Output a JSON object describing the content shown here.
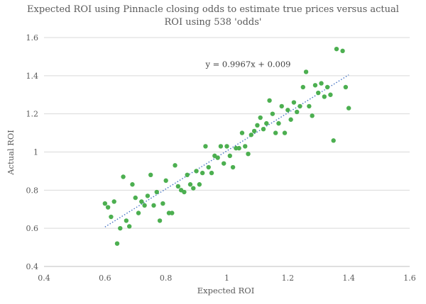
{
  "chart_data": {
    "type": "scatter",
    "title_lines": [
      "Expected ROI using Pinnacle closing odds to estimate true prices versus actual",
      "ROI using 538 'odds'"
    ],
    "xlabel": "Expected ROI",
    "ylabel": "Actual ROI",
    "xlim": [
      0.4,
      1.6
    ],
    "ylim": [
      0.4,
      1.6
    ],
    "x_ticks": [
      0.4,
      0.6,
      0.8,
      1.0,
      1.2,
      1.4,
      1.6
    ],
    "x_tick_labels": [
      "0.4",
      "0.6",
      "0.8",
      "1",
      "1.2",
      "1.4",
      "1.6"
    ],
    "y_ticks": [
      0.4,
      0.6,
      0.8,
      1.0,
      1.2,
      1.4,
      1.6
    ],
    "y_tick_labels": [
      "0.4",
      "0.6",
      "0.8",
      "1",
      "1.2",
      "1.4",
      "1.6"
    ],
    "grid": "horizontal",
    "legend": "none",
    "point_color": "#4caf50",
    "trend_color": "#4472c4",
    "grid_color": "#d9d9d9",
    "trendline": {
      "equation_label": "y = 0.9967x + 0.009",
      "slope": 0.9967,
      "intercept": 0.009,
      "x_range": [
        0.6,
        1.4
      ],
      "label_anchor": [
        0.93,
        1.46
      ]
    },
    "points": [
      [
        0.6,
        0.73
      ],
      [
        0.61,
        0.71
      ],
      [
        0.62,
        0.66
      ],
      [
        0.63,
        0.74
      ],
      [
        0.64,
        0.52
      ],
      [
        0.65,
        0.6
      ],
      [
        0.66,
        0.87
      ],
      [
        0.67,
        0.64
      ],
      [
        0.68,
        0.61
      ],
      [
        0.69,
        0.83
      ],
      [
        0.7,
        0.76
      ],
      [
        0.71,
        0.68
      ],
      [
        0.72,
        0.74
      ],
      [
        0.73,
        0.72
      ],
      [
        0.74,
        0.77
      ],
      [
        0.75,
        0.88
      ],
      [
        0.76,
        0.72
      ],
      [
        0.77,
        0.79
      ],
      [
        0.78,
        0.64
      ],
      [
        0.79,
        0.73
      ],
      [
        0.8,
        0.85
      ],
      [
        0.81,
        0.68
      ],
      [
        0.82,
        0.68
      ],
      [
        0.83,
        0.93
      ],
      [
        0.84,
        0.82
      ],
      [
        0.85,
        0.8
      ],
      [
        0.86,
        0.79
      ],
      [
        0.87,
        0.88
      ],
      [
        0.88,
        0.83
      ],
      [
        0.89,
        0.81
      ],
      [
        0.9,
        0.9
      ],
      [
        0.91,
        0.83
      ],
      [
        0.92,
        0.89
      ],
      [
        0.93,
        1.03
      ],
      [
        0.94,
        0.92
      ],
      [
        0.95,
        0.89
      ],
      [
        0.96,
        0.98
      ],
      [
        0.97,
        0.97
      ],
      [
        0.98,
        1.03
      ],
      [
        0.99,
        0.94
      ],
      [
        1.0,
        1.03
      ],
      [
        1.01,
        0.98
      ],
      [
        1.02,
        0.92
      ],
      [
        1.03,
        1.02
      ],
      [
        1.04,
        1.02
      ],
      [
        1.05,
        1.1
      ],
      [
        1.06,
        1.03
      ],
      [
        1.07,
        0.99
      ],
      [
        1.08,
        1.09
      ],
      [
        1.09,
        1.11
      ],
      [
        1.1,
        1.14
      ],
      [
        1.11,
        1.18
      ],
      [
        1.12,
        1.12
      ],
      [
        1.13,
        1.15
      ],
      [
        1.14,
        1.27
      ],
      [
        1.15,
        1.2
      ],
      [
        1.16,
        1.1
      ],
      [
        1.17,
        1.15
      ],
      [
        1.18,
        1.24
      ],
      [
        1.19,
        1.1
      ],
      [
        1.2,
        1.22
      ],
      [
        1.21,
        1.17
      ],
      [
        1.22,
        1.26
      ],
      [
        1.23,
        1.21
      ],
      [
        1.24,
        1.24
      ],
      [
        1.25,
        1.34
      ],
      [
        1.26,
        1.42
      ],
      [
        1.27,
        1.24
      ],
      [
        1.28,
        1.19
      ],
      [
        1.29,
        1.35
      ],
      [
        1.3,
        1.31
      ],
      [
        1.31,
        1.36
      ],
      [
        1.32,
        1.29
      ],
      [
        1.33,
        1.34
      ],
      [
        1.34,
        1.3
      ],
      [
        1.35,
        1.06
      ],
      [
        1.36,
        1.54
      ],
      [
        1.38,
        1.53
      ],
      [
        1.39,
        1.34
      ],
      [
        1.4,
        1.23
      ]
    ]
  }
}
